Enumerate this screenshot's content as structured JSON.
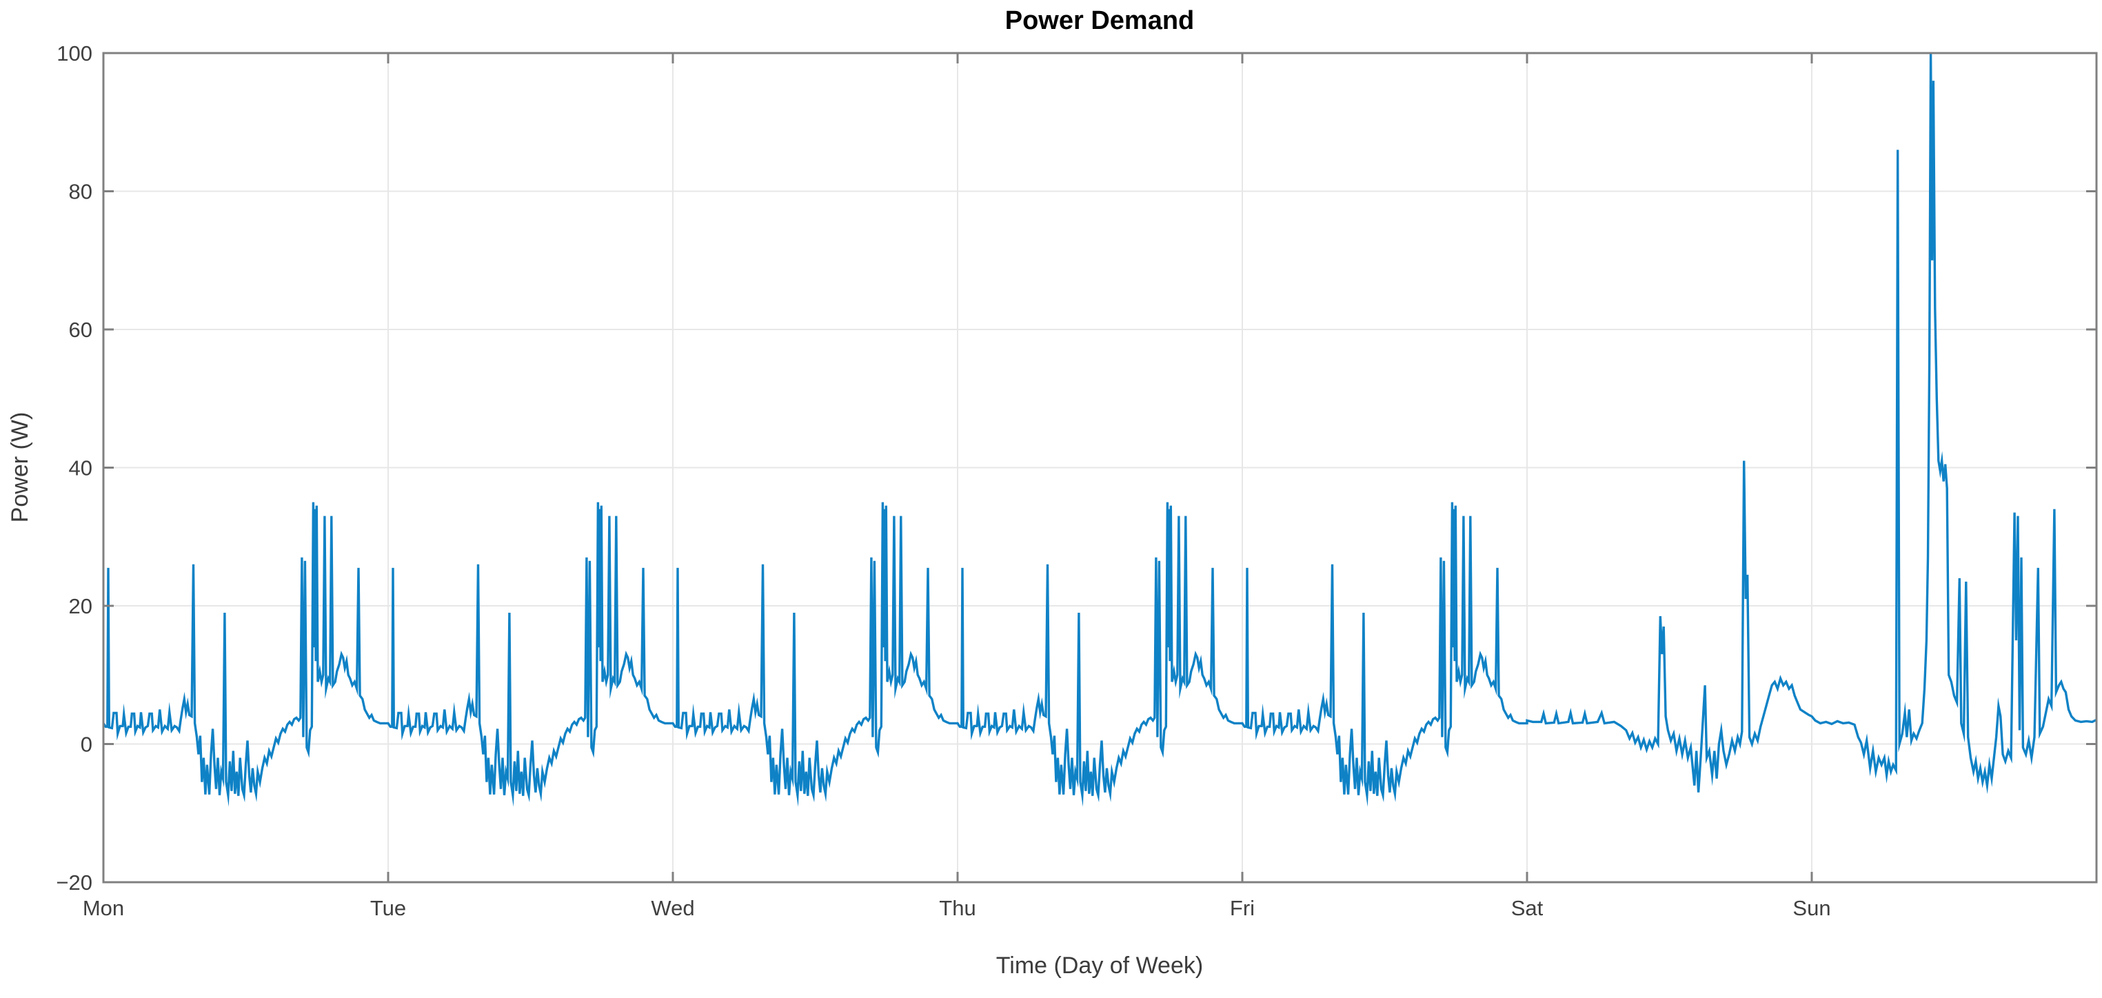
{
  "window": {
    "background": "#ffffff"
  },
  "chart_data": {
    "type": "line",
    "title": "Power Demand",
    "xlabel": "Time (Day of Week)",
    "ylabel": "Power (W)",
    "series_name": "Power Demand",
    "x_categories": [
      "Mon",
      "Tue",
      "Wed",
      "Thu",
      "Fri",
      "Sat",
      "Sun"
    ],
    "ylim": [
      -20,
      100
    ],
    "yticks": [
      -20,
      0,
      20,
      40,
      60,
      80,
      100
    ],
    "ytick_labels": [
      "−20",
      "0",
      "20",
      "40",
      "60",
      "80",
      "100"
    ],
    "grid": true,
    "legend_position": "none",
    "line_color": "#0f82c6",
    "axis_color": "#808080",
    "grid_color": "#e7e7e7",
    "label_color": "#3c3c3c",
    "tick_label_color": "#404040",
    "title_color": "#000000",
    "x_unit": "fraction of day, one profile per day, Mon through Sun",
    "profiles": {
      "weekday_days": [
        0,
        1,
        2,
        3,
        4
      ],
      "weekday": [
        [
          0.0,
          3.0
        ],
        [
          0.008,
          2.5
        ],
        [
          0.014,
          2.5
        ],
        [
          0.017,
          25.5
        ],
        [
          0.02,
          2.4
        ],
        [
          0.03,
          2.3
        ],
        [
          0.036,
          4.5
        ],
        [
          0.046,
          4.5
        ],
        [
          0.05,
          1.5
        ],
        [
          0.058,
          2.6
        ],
        [
          0.068,
          2.6
        ],
        [
          0.072,
          4.3
        ],
        [
          0.08,
          1.6
        ],
        [
          0.088,
          2.5
        ],
        [
          0.096,
          2.5
        ],
        [
          0.1,
          4.4
        ],
        [
          0.108,
          4.4
        ],
        [
          0.112,
          1.8
        ],
        [
          0.12,
          2.6
        ],
        [
          0.128,
          2.4
        ],
        [
          0.132,
          4.6
        ],
        [
          0.14,
          1.7
        ],
        [
          0.148,
          2.4
        ],
        [
          0.156,
          2.6
        ],
        [
          0.162,
          4.4
        ],
        [
          0.17,
          4.4
        ],
        [
          0.174,
          2.0
        ],
        [
          0.184,
          2.6
        ],
        [
          0.192,
          2.4
        ],
        [
          0.198,
          5.0
        ],
        [
          0.206,
          1.8
        ],
        [
          0.216,
          2.6
        ],
        [
          0.226,
          2.2
        ],
        [
          0.232,
          4.6
        ],
        [
          0.24,
          2.0
        ],
        [
          0.25,
          2.6
        ],
        [
          0.258,
          2.4
        ],
        [
          0.266,
          1.9
        ],
        [
          0.272,
          3.6
        ],
        [
          0.278,
          5.2
        ],
        [
          0.284,
          6.5
        ],
        [
          0.29,
          4.6
        ],
        [
          0.296,
          5.8
        ],
        [
          0.302,
          4.2
        ],
        [
          0.31,
          4.0
        ],
        [
          0.316,
          26.0
        ],
        [
          0.321,
          3.0
        ],
        [
          0.328,
          1.0
        ],
        [
          0.334,
          -1.5
        ],
        [
          0.34,
          1.2
        ],
        [
          0.346,
          -5.5
        ],
        [
          0.352,
          -2.0
        ],
        [
          0.358,
          -7.3
        ],
        [
          0.364,
          -3.0
        ],
        [
          0.372,
          -7.3
        ],
        [
          0.378,
          -1.5
        ],
        [
          0.384,
          2.2
        ],
        [
          0.39,
          -3.0
        ],
        [
          0.396,
          -6.5
        ],
        [
          0.402,
          -2.0
        ],
        [
          0.408,
          -7.4
        ],
        [
          0.414,
          -4.0
        ],
        [
          0.42,
          -5.0
        ],
        [
          0.426,
          19.0
        ],
        [
          0.431,
          -5.5
        ],
        [
          0.438,
          -7.4
        ],
        [
          0.444,
          -2.5
        ],
        [
          0.45,
          -6.8
        ],
        [
          0.456,
          -1.0
        ],
        [
          0.462,
          -7.2
        ],
        [
          0.468,
          -4.0
        ],
        [
          0.474,
          -7.5
        ],
        [
          0.48,
          -2.0
        ],
        [
          0.488,
          -6.5
        ],
        [
          0.494,
          -7.4
        ],
        [
          0.5,
          -3.0
        ],
        [
          0.506,
          0.5
        ],
        [
          0.512,
          -4.5
        ],
        [
          0.518,
          -7.0
        ],
        [
          0.524,
          -3.5
        ],
        [
          0.53,
          -6.0
        ],
        [
          0.536,
          -7.2
        ],
        [
          0.542,
          -4.0
        ],
        [
          0.55,
          -5.5
        ],
        [
          0.558,
          -3.5
        ],
        [
          0.566,
          -2.0
        ],
        [
          0.574,
          -2.8
        ],
        [
          0.582,
          -1.0
        ],
        [
          0.59,
          -1.8
        ],
        [
          0.598,
          -0.5
        ],
        [
          0.606,
          0.8
        ],
        [
          0.614,
          0.2
        ],
        [
          0.622,
          1.5
        ],
        [
          0.63,
          2.2
        ],
        [
          0.638,
          1.8
        ],
        [
          0.646,
          2.8
        ],
        [
          0.654,
          3.2
        ],
        [
          0.662,
          2.8
        ],
        [
          0.67,
          3.6
        ],
        [
          0.678,
          3.8
        ],
        [
          0.686,
          3.4
        ],
        [
          0.692,
          3.8
        ],
        [
          0.697,
          27.0
        ],
        [
          0.702,
          1.0
        ],
        [
          0.708,
          26.5
        ],
        [
          0.714,
          -0.5
        ],
        [
          0.72,
          -1.2
        ],
        [
          0.726,
          2.0
        ],
        [
          0.732,
          2.5
        ],
        [
          0.737,
          35.0
        ],
        [
          0.74,
          14.0
        ],
        [
          0.743,
          34.0
        ],
        [
          0.746,
          12.0
        ],
        [
          0.749,
          34.5
        ],
        [
          0.753,
          9.0
        ],
        [
          0.76,
          10.5
        ],
        [
          0.766,
          9.0
        ],
        [
          0.772,
          10.0
        ],
        [
          0.777,
          33.0
        ],
        [
          0.782,
          8.0
        ],
        [
          0.79,
          9.5
        ],
        [
          0.796,
          9.0
        ],
        [
          0.801,
          33.0
        ],
        [
          0.806,
          8.5
        ],
        [
          0.814,
          9.0
        ],
        [
          0.82,
          10.5
        ],
        [
          0.828,
          11.5
        ],
        [
          0.836,
          13.0
        ],
        [
          0.842,
          12.5
        ],
        [
          0.848,
          11.0
        ],
        [
          0.854,
          12.0
        ],
        [
          0.86,
          10.0
        ],
        [
          0.866,
          9.5
        ],
        [
          0.874,
          8.5
        ],
        [
          0.882,
          9.0
        ],
        [
          0.89,
          8.0
        ],
        [
          0.896,
          25.5
        ],
        [
          0.901,
          7.0
        ],
        [
          0.91,
          6.5
        ],
        [
          0.918,
          5.0
        ],
        [
          0.926,
          4.4
        ],
        [
          0.934,
          3.8
        ],
        [
          0.942,
          4.2
        ],
        [
          0.95,
          3.4
        ],
        [
          0.96,
          3.2
        ],
        [
          0.972,
          3.0
        ],
        [
          0.986,
          3.0
        ],
        [
          1.0,
          3.0
        ]
      ],
      "saturday": [
        [
          0.0,
          3.4
        ],
        [
          0.02,
          3.2
        ],
        [
          0.05,
          3.2
        ],
        [
          0.058,
          4.4
        ],
        [
          0.066,
          3.0
        ],
        [
          0.095,
          3.1
        ],
        [
          0.103,
          4.4
        ],
        [
          0.111,
          3.0
        ],
        [
          0.145,
          3.2
        ],
        [
          0.153,
          4.5
        ],
        [
          0.161,
          3.0
        ],
        [
          0.195,
          3.1
        ],
        [
          0.203,
          4.4
        ],
        [
          0.211,
          3.0
        ],
        [
          0.248,
          3.2
        ],
        [
          0.262,
          4.5
        ],
        [
          0.272,
          3.0
        ],
        [
          0.306,
          3.2
        ],
        [
          0.33,
          2.6
        ],
        [
          0.348,
          2.0
        ],
        [
          0.36,
          0.8
        ],
        [
          0.37,
          1.6
        ],
        [
          0.38,
          0.2
        ],
        [
          0.39,
          1.0
        ],
        [
          0.4,
          -0.5
        ],
        [
          0.41,
          0.6
        ],
        [
          0.42,
          -0.8
        ],
        [
          0.43,
          0.4
        ],
        [
          0.44,
          -0.5
        ],
        [
          0.45,
          0.8
        ],
        [
          0.46,
          0.0
        ],
        [
          0.468,
          18.5
        ],
        [
          0.474,
          13.0
        ],
        [
          0.48,
          17.0
        ],
        [
          0.487,
          4.0
        ],
        [
          0.495,
          2.0
        ],
        [
          0.505,
          0.5
        ],
        [
          0.515,
          1.5
        ],
        [
          0.525,
          -1.0
        ],
        [
          0.535,
          0.8
        ],
        [
          0.545,
          -1.5
        ],
        [
          0.555,
          0.5
        ],
        [
          0.565,
          -2.0
        ],
        [
          0.575,
          -0.5
        ],
        [
          0.588,
          -6.0
        ],
        [
          0.595,
          -1.0
        ],
        [
          0.602,
          -7.0
        ],
        [
          0.61,
          -2.0
        ],
        [
          0.625,
          8.5
        ],
        [
          0.631,
          -2.0
        ],
        [
          0.64,
          -1.0
        ],
        [
          0.65,
          -4.5
        ],
        [
          0.658,
          -1.0
        ],
        [
          0.666,
          -5.0
        ],
        [
          0.674,
          0.0
        ],
        [
          0.682,
          2.0
        ],
        [
          0.69,
          -1.0
        ],
        [
          0.7,
          -3.0
        ],
        [
          0.71,
          -1.5
        ],
        [
          0.72,
          0.5
        ],
        [
          0.73,
          -1.0
        ],
        [
          0.74,
          1.0
        ],
        [
          0.748,
          0.0
        ],
        [
          0.755,
          1.8
        ],
        [
          0.762,
          41.0
        ],
        [
          0.768,
          21.0
        ],
        [
          0.774,
          24.5
        ],
        [
          0.781,
          1.0
        ],
        [
          0.79,
          0.0
        ],
        [
          0.8,
          1.5
        ],
        [
          0.81,
          0.5
        ],
        [
          0.82,
          2.5
        ],
        [
          0.83,
          4.0
        ],
        [
          0.84,
          5.5
        ],
        [
          0.85,
          7.0
        ],
        [
          0.86,
          8.5
        ],
        [
          0.87,
          9.0
        ],
        [
          0.88,
          8.0
        ],
        [
          0.89,
          9.5
        ],
        [
          0.9,
          8.5
        ],
        [
          0.91,
          9.0
        ],
        [
          0.92,
          8.0
        ],
        [
          0.93,
          8.5
        ],
        [
          0.94,
          7.0
        ],
        [
          0.95,
          6.0
        ],
        [
          0.96,
          5.0
        ],
        [
          0.975,
          4.6
        ],
        [
          0.99,
          4.2
        ]
      ],
      "sunday": [
        [
          0.0,
          4.0
        ],
        [
          0.012,
          3.4
        ],
        [
          0.03,
          3.0
        ],
        [
          0.05,
          3.2
        ],
        [
          0.07,
          2.9
        ],
        [
          0.09,
          3.3
        ],
        [
          0.11,
          3.0
        ],
        [
          0.13,
          3.1
        ],
        [
          0.15,
          2.8
        ],
        [
          0.163,
          1.0
        ],
        [
          0.173,
          0.2
        ],
        [
          0.183,
          -1.5
        ],
        [
          0.193,
          0.5
        ],
        [
          0.205,
          -3.5
        ],
        [
          0.215,
          -1.0
        ],
        [
          0.225,
          -4.0
        ],
        [
          0.235,
          -2.0
        ],
        [
          0.245,
          -3.0
        ],
        [
          0.255,
          -2.0
        ],
        [
          0.263,
          -4.5
        ],
        [
          0.27,
          -2.5
        ],
        [
          0.278,
          -4.0
        ],
        [
          0.286,
          -3.0
        ],
        [
          0.296,
          -3.8
        ],
        [
          0.302,
          86.0
        ],
        [
          0.308,
          0.0
        ],
        [
          0.318,
          1.5
        ],
        [
          0.327,
          4.5
        ],
        [
          0.334,
          1.0
        ],
        [
          0.342,
          5.0
        ],
        [
          0.35,
          0.5
        ],
        [
          0.358,
          1.5
        ],
        [
          0.368,
          0.8
        ],
        [
          0.378,
          2.0
        ],
        [
          0.388,
          3.0
        ],
        [
          0.396,
          8.0
        ],
        [
          0.403,
          15.0
        ],
        [
          0.408,
          27.0
        ],
        [
          0.413,
          55.0
        ],
        [
          0.418,
          100.0
        ],
        [
          0.423,
          70.0
        ],
        [
          0.427,
          96.0
        ],
        [
          0.433,
          63.0
        ],
        [
          0.439,
          50.0
        ],
        [
          0.445,
          41.0
        ],
        [
          0.451,
          39.5
        ],
        [
          0.457,
          41.0
        ],
        [
          0.463,
          38.0
        ],
        [
          0.469,
          40.5
        ],
        [
          0.475,
          37.0
        ],
        [
          0.481,
          10.0
        ],
        [
          0.49,
          9.0
        ],
        [
          0.5,
          7.0
        ],
        [
          0.51,
          6.0
        ],
        [
          0.519,
          24.0
        ],
        [
          0.525,
          3.0
        ],
        [
          0.534,
          1.5
        ],
        [
          0.542,
          23.5
        ],
        [
          0.549,
          1.0
        ],
        [
          0.558,
          -2.0
        ],
        [
          0.568,
          -4.0
        ],
        [
          0.576,
          -2.5
        ],
        [
          0.584,
          -5.0
        ],
        [
          0.592,
          -3.5
        ],
        [
          0.6,
          -5.5
        ],
        [
          0.608,
          -4.0
        ],
        [
          0.616,
          -6.0
        ],
        [
          0.624,
          -3.0
        ],
        [
          0.632,
          -5.0
        ],
        [
          0.64,
          -2.0
        ],
        [
          0.648,
          1.0
        ],
        [
          0.656,
          5.5
        ],
        [
          0.663,
          4.0
        ],
        [
          0.671,
          -1.5
        ],
        [
          0.68,
          -2.5
        ],
        [
          0.69,
          -1.0
        ],
        [
          0.7,
          -2.0
        ],
        [
          0.712,
          33.5
        ],
        [
          0.718,
          15.0
        ],
        [
          0.724,
          33.0
        ],
        [
          0.73,
          2.0
        ],
        [
          0.736,
          27.0
        ],
        [
          0.742,
          -0.5
        ],
        [
          0.752,
          -1.5
        ],
        [
          0.762,
          0.5
        ],
        [
          0.772,
          -2.0
        ],
        [
          0.782,
          1.0
        ],
        [
          0.795,
          25.5
        ],
        [
          0.801,
          1.5
        ],
        [
          0.812,
          2.5
        ],
        [
          0.822,
          4.5
        ],
        [
          0.832,
          6.5
        ],
        [
          0.842,
          5.5
        ],
        [
          0.852,
          34.0
        ],
        [
          0.858,
          7.5
        ],
        [
          0.868,
          8.5
        ],
        [
          0.876,
          9.0
        ],
        [
          0.884,
          8.0
        ],
        [
          0.892,
          7.5
        ],
        [
          0.902,
          5.0
        ],
        [
          0.912,
          4.0
        ],
        [
          0.926,
          3.4
        ],
        [
          0.945,
          3.2
        ],
        [
          0.965,
          3.3
        ],
        [
          0.985,
          3.2
        ],
        [
          1.0,
          3.5
        ]
      ]
    }
  }
}
